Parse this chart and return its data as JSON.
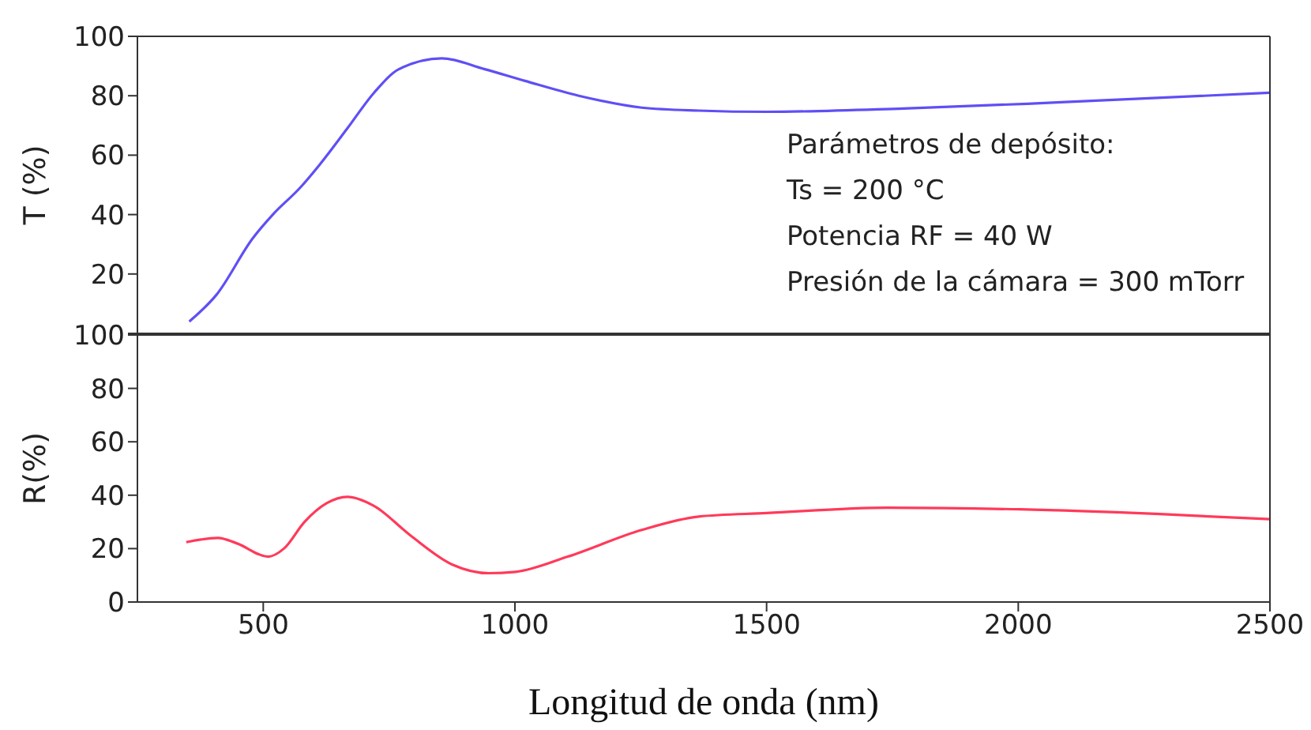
{
  "chart_data": [
    {
      "type": "line",
      "ylabel": "T (%)",
      "xlim": [
        250,
        2500
      ],
      "xticks": [
        500,
        1000,
        1500,
        2000,
        2500
      ],
      "ylim": [
        0,
        100
      ],
      "yticks": [
        {
          "value": 0,
          "label": null
        },
        20,
        40,
        60,
        80,
        100
      ],
      "tick_labels": "y",
      "annotations": [
        "Parámetros de depósito:",
        "Ts = 200 °C",
        "Potencia RF = 40 W",
        "Presión de la cámara = 300 mTorr"
      ],
      "series": [
        {
          "color": "#5f4ff5",
          "x": [
            353,
            407,
            479,
            519,
            573,
            613,
            667,
            720,
            770,
            855,
            939,
            1020,
            1127,
            1252,
            1365,
            1500,
            1772,
            2085,
            2500
          ],
          "values": [
            4,
            13,
            32,
            40,
            49,
            57,
            69,
            81,
            89,
            92.6,
            89,
            85,
            80,
            76,
            75,
            74.6,
            75.7,
            77.8,
            81
          ]
        }
      ]
    },
    {
      "type": "line",
      "xlabel": "Longitud de onda (nm)",
      "ylabel": "R(%)",
      "xlim": [
        250,
        2500
      ],
      "xticks": [
        500,
        1000,
        1500,
        2000,
        2500
      ],
      "ylim": [
        0,
        100
      ],
      "yticks": [
        0,
        20,
        40,
        60,
        80,
        100
      ],
      "series": [
        {
          "color": "#ff3a5a",
          "x": [
            347,
            410,
            447,
            510,
            541,
            582,
            626,
            667,
            720,
            792,
            876,
            948,
            1001,
            1105,
            1252,
            1365,
            1500,
            1741,
            2004,
            2273,
            2500
          ],
          "values": [
            22.4,
            24,
            22,
            17,
            20,
            30,
            37,
            39.4,
            36,
            25,
            14,
            10.8,
            11.3,
            17,
            27,
            32,
            33.3,
            35.3,
            34.7,
            33,
            31
          ]
        }
      ]
    }
  ]
}
